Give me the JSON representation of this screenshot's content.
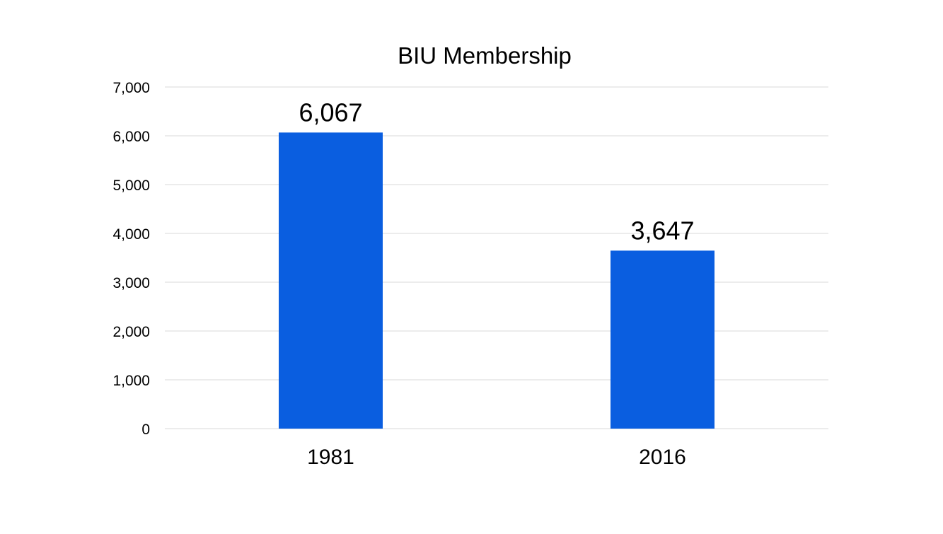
{
  "chart_data": {
    "type": "bar",
    "title": "BIU Membership",
    "xlabel": "",
    "ylabel": "",
    "categories": [
      "1981",
      "2016"
    ],
    "values": [
      6067,
      3647
    ],
    "data_labels": [
      "6,067",
      "3,647"
    ],
    "ylim": [
      0,
      7000
    ],
    "yticks": [
      0,
      1000,
      2000,
      3000,
      4000,
      5000,
      6000,
      7000
    ],
    "ytick_labels": [
      "0",
      "1,000",
      "2,000",
      "3,000",
      "4,000",
      "5,000",
      "6,000",
      "7,000"
    ],
    "grid": true,
    "legend": "none",
    "bar_color": "#0a5ee0",
    "grid_color": "#d9d9d9"
  }
}
